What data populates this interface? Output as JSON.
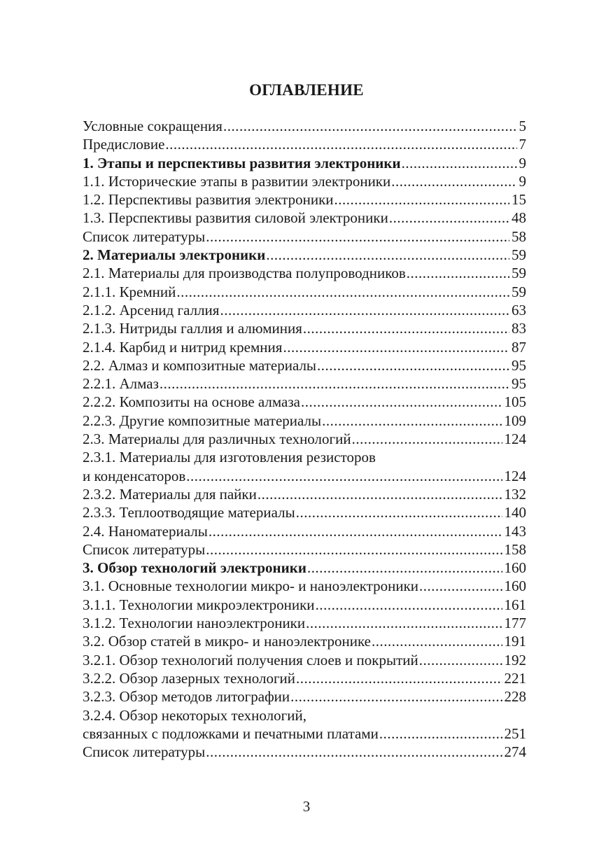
{
  "title": "ОГЛАВЛЕНИЕ",
  "toc": {
    "entries": [
      {
        "label": "Условные сокращения",
        "page": "5"
      },
      {
        "label": "Предисловие",
        "page": "7"
      },
      {
        "label": "1. Этапы и перспективы развития электроники",
        "page": "9",
        "bold": true
      },
      {
        "label": "1.1. Исторические этапы в развитии электроники ",
        "page": "9"
      },
      {
        "label": "1.2. Перспективы развития электроники",
        "page": "15"
      },
      {
        "label": "1.3. Перспективы развития силовой электроники",
        "page": "48"
      },
      {
        "label": "Список литературы",
        "page": "58"
      },
      {
        "label": "2. Материалы электроники ",
        "page": "59",
        "bold": true
      },
      {
        "label": "2.1. Материалы для производства полупроводников",
        "page": "59"
      },
      {
        "label": "2.1.1. Кремний",
        "page": "59"
      },
      {
        "label": "2.1.2. Арсенид галлия",
        "page": "63"
      },
      {
        "label": "2.1.3. Нитриды галлия и алюминия ",
        "page": "83"
      },
      {
        "label": "2.1.4. Карбид и нитрид кремния",
        "page": "87"
      },
      {
        "label": "2.2. Алмаз и композитные материалы ",
        "page": "95"
      },
      {
        "label": "2.2.1. Алмаз ",
        "page": "95"
      },
      {
        "label": "2.2.2. Композиты на основе алмаза",
        "page": "105"
      },
      {
        "label": "2.2.3. Другие композитные материалы",
        "page": "109"
      },
      {
        "label": "2.3. Материалы для различных технологий ",
        "page": "124"
      },
      {
        "label": "2.3.1. Материалы для изготовления резисторов",
        "page": null
      },
      {
        "label": "и конденсаторов",
        "page": "124"
      },
      {
        "label": "2.3.2. Материалы для пайки",
        "page": "132"
      },
      {
        "label": "2.3.3. Теплоотводящие материалы ",
        "page": "140"
      },
      {
        "label": "2.4. Наноматериалы",
        "page": "143"
      },
      {
        "label": "Список литературы",
        "page": "158"
      },
      {
        "label": "3. Обзор технологий электроники ",
        "page": "160",
        "bold": true
      },
      {
        "label": "3.1. Основные технологии микро- и наноэлектроники",
        "page": "160"
      },
      {
        "label": "3.1.1. Технологии микроэлектроники",
        "page": "161"
      },
      {
        "label": "3.1.2. Технологии наноэлектроники ",
        "page": "177"
      },
      {
        "label": "3.2. Обзор статей в микро- и наноэлектронике",
        "page": "191"
      },
      {
        "label": "3.2.1. Обзор технологий получения слоев и покрытий",
        "page": "192"
      },
      {
        "label": "3.2.2. Обзор лазерных технологий ",
        "page": "221"
      },
      {
        "label": "3.2.3. Обзор методов литографии",
        "page": "228"
      },
      {
        "label": "3.2.4. Обзор некоторых технологий,",
        "page": null
      },
      {
        "label": "связанных с подложками и печатными платами ",
        "page": "251"
      },
      {
        "label": "Список литературы",
        "page": "274"
      }
    ]
  },
  "page_number": "3"
}
